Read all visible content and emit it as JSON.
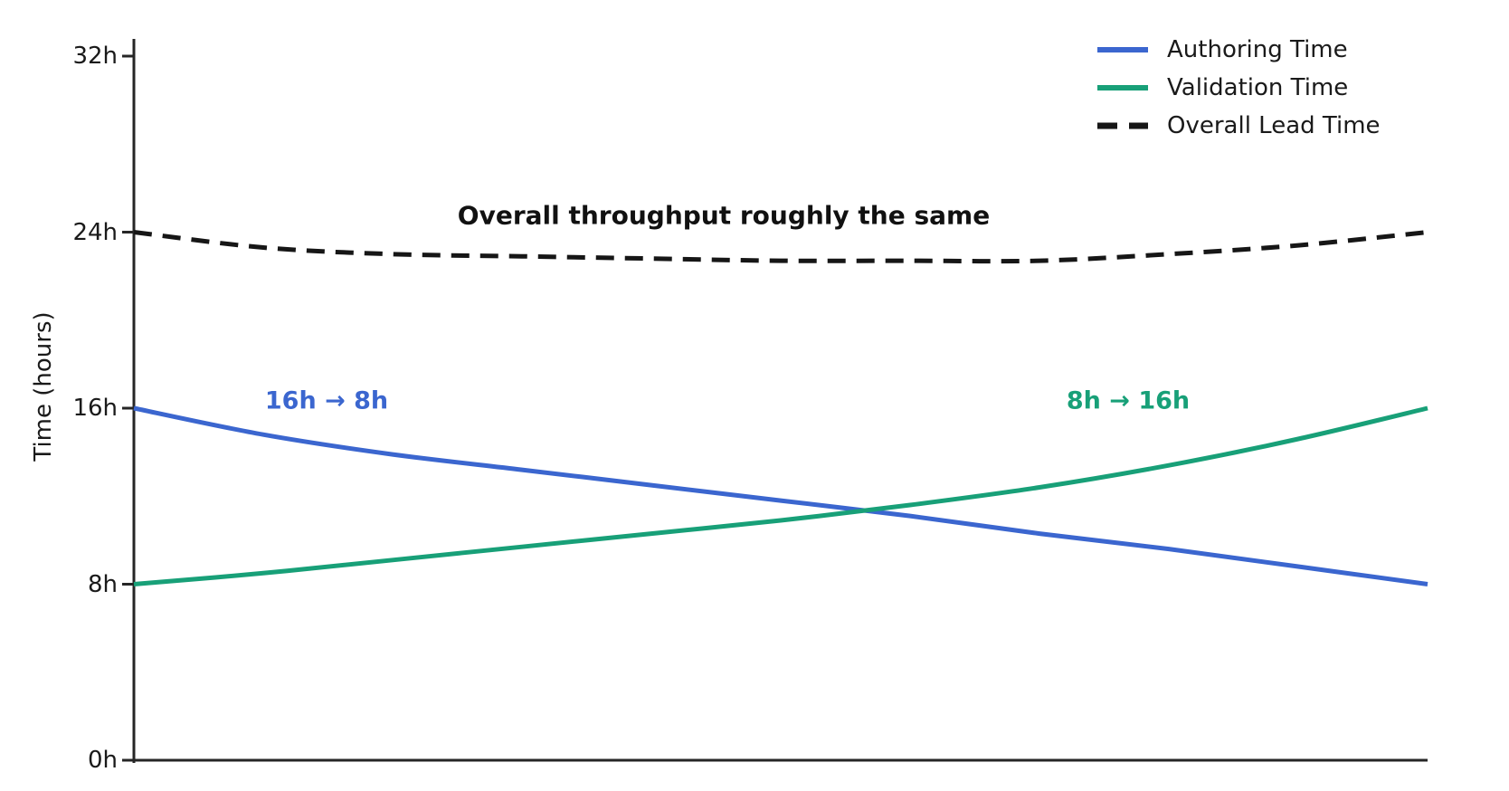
{
  "chart_data": {
    "type": "line",
    "title": "",
    "xlabel": "",
    "ylabel": "Time (hours)",
    "ylim": [
      0,
      32
    ],
    "grid": false,
    "legend_position": "upper right",
    "yticks": [
      {
        "value": 0,
        "label": "0h"
      },
      {
        "value": 8,
        "label": "8h"
      },
      {
        "value": 16,
        "label": "16h"
      },
      {
        "value": 24,
        "label": "24h"
      },
      {
        "value": 32,
        "label": "32h"
      }
    ],
    "x": [
      0,
      0.1,
      0.2,
      0.3,
      0.4,
      0.5,
      0.6,
      0.7,
      0.8,
      0.9,
      1.0
    ],
    "series": [
      {
        "name": "Authoring Time",
        "color": "#3b66cf",
        "style": "solid",
        "values": [
          16.0,
          14.8,
          13.9,
          13.2,
          12.5,
          11.8,
          11.1,
          10.3,
          9.6,
          8.8,
          8.0
        ]
      },
      {
        "name": "Validation Time",
        "color": "#18a078",
        "style": "solid",
        "values": [
          8.0,
          8.5,
          9.1,
          9.7,
          10.3,
          10.9,
          11.6,
          12.4,
          13.4,
          14.6,
          16.0
        ]
      },
      {
        "name": "Overall Lead Time",
        "color": "#161616",
        "style": "dashed",
        "values": [
          24.0,
          23.3,
          23.0,
          22.9,
          22.8,
          22.7,
          22.7,
          22.7,
          23.0,
          23.4,
          24.0
        ]
      }
    ],
    "annotations": [
      {
        "id": "note",
        "text": "Overall throughput roughly the same",
        "color": "#111111"
      },
      {
        "id": "authoring",
        "text": "16h → 8h",
        "color": "#3b66cf"
      },
      {
        "id": "validation",
        "text": "8h → 16h",
        "color": "#18a078"
      }
    ],
    "axis_color": "#262626"
  }
}
